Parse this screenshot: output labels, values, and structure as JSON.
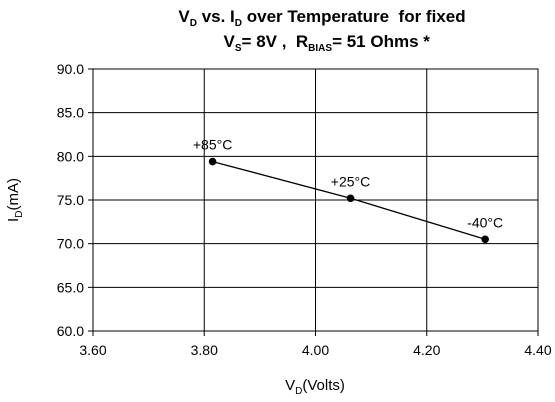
{
  "chart_data": {
    "type": "line",
    "title_line1": {
      "parts": [
        "V",
        "D",
        " vs. I",
        "D",
        " over Temperature  for fixed"
      ]
    },
    "title_line2": {
      "parts": [
        "V",
        "S",
        "= 8V ,  R",
        "BIAS",
        "= 51 Ohms *"
      ]
    },
    "xlabel": {
      "main": "V",
      "sub": "D",
      "rest": "(Volts)"
    },
    "ylabel": {
      "main": "I",
      "sub": "D",
      "rest": "(mA)"
    },
    "xlim": [
      3.6,
      4.4
    ],
    "ylim": [
      60.0,
      90.0
    ],
    "xticks": [
      "3.60",
      "3.80",
      "4.00",
      "4.20",
      "4.40"
    ],
    "yticks": [
      "60.0",
      "65.0",
      "70.0",
      "75.0",
      "80.0",
      "85.0",
      "90.0"
    ],
    "grid": true,
    "series": [
      {
        "color": "#000000",
        "points": [
          {
            "x": 3.815,
            "y": 79.4,
            "label": "+85°C"
          },
          {
            "x": 4.063,
            "y": 75.2,
            "label": "+25°C"
          },
          {
            "x": 4.305,
            "y": 70.5,
            "label": "-40°C"
          }
        ]
      }
    ]
  }
}
